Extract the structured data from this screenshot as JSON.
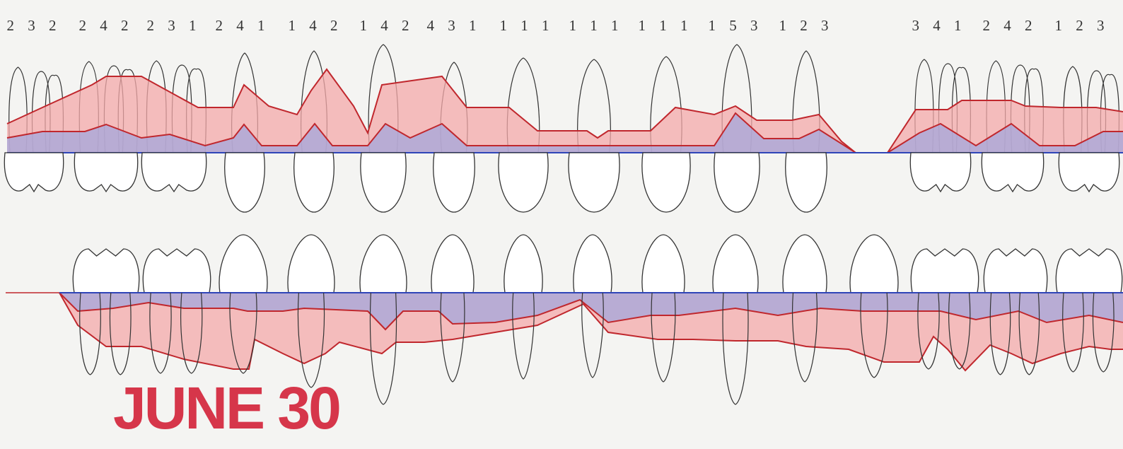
{
  "upper_probing_depths": [
    "2 3 2",
    "2 4 2",
    "2 3 1",
    "2 4 1",
    "1 4 2",
    "1 4 2",
    "4 3 1",
    "1 1 1",
    "1 1 1",
    "1 1 1",
    "1 5 3",
    "1 2 3",
    "",
    "3 4 1",
    "2 4 2",
    "1 2 3"
  ],
  "caption": "JUNE 30",
  "colors": {
    "background": "#f4f4f2",
    "attachment_fill": "#f4aaaa",
    "attachment_line": "#c0272d",
    "pocket_fill": "#a9a8da",
    "gingival_line": "#2f45b8",
    "caption": "#d6364a"
  }
}
